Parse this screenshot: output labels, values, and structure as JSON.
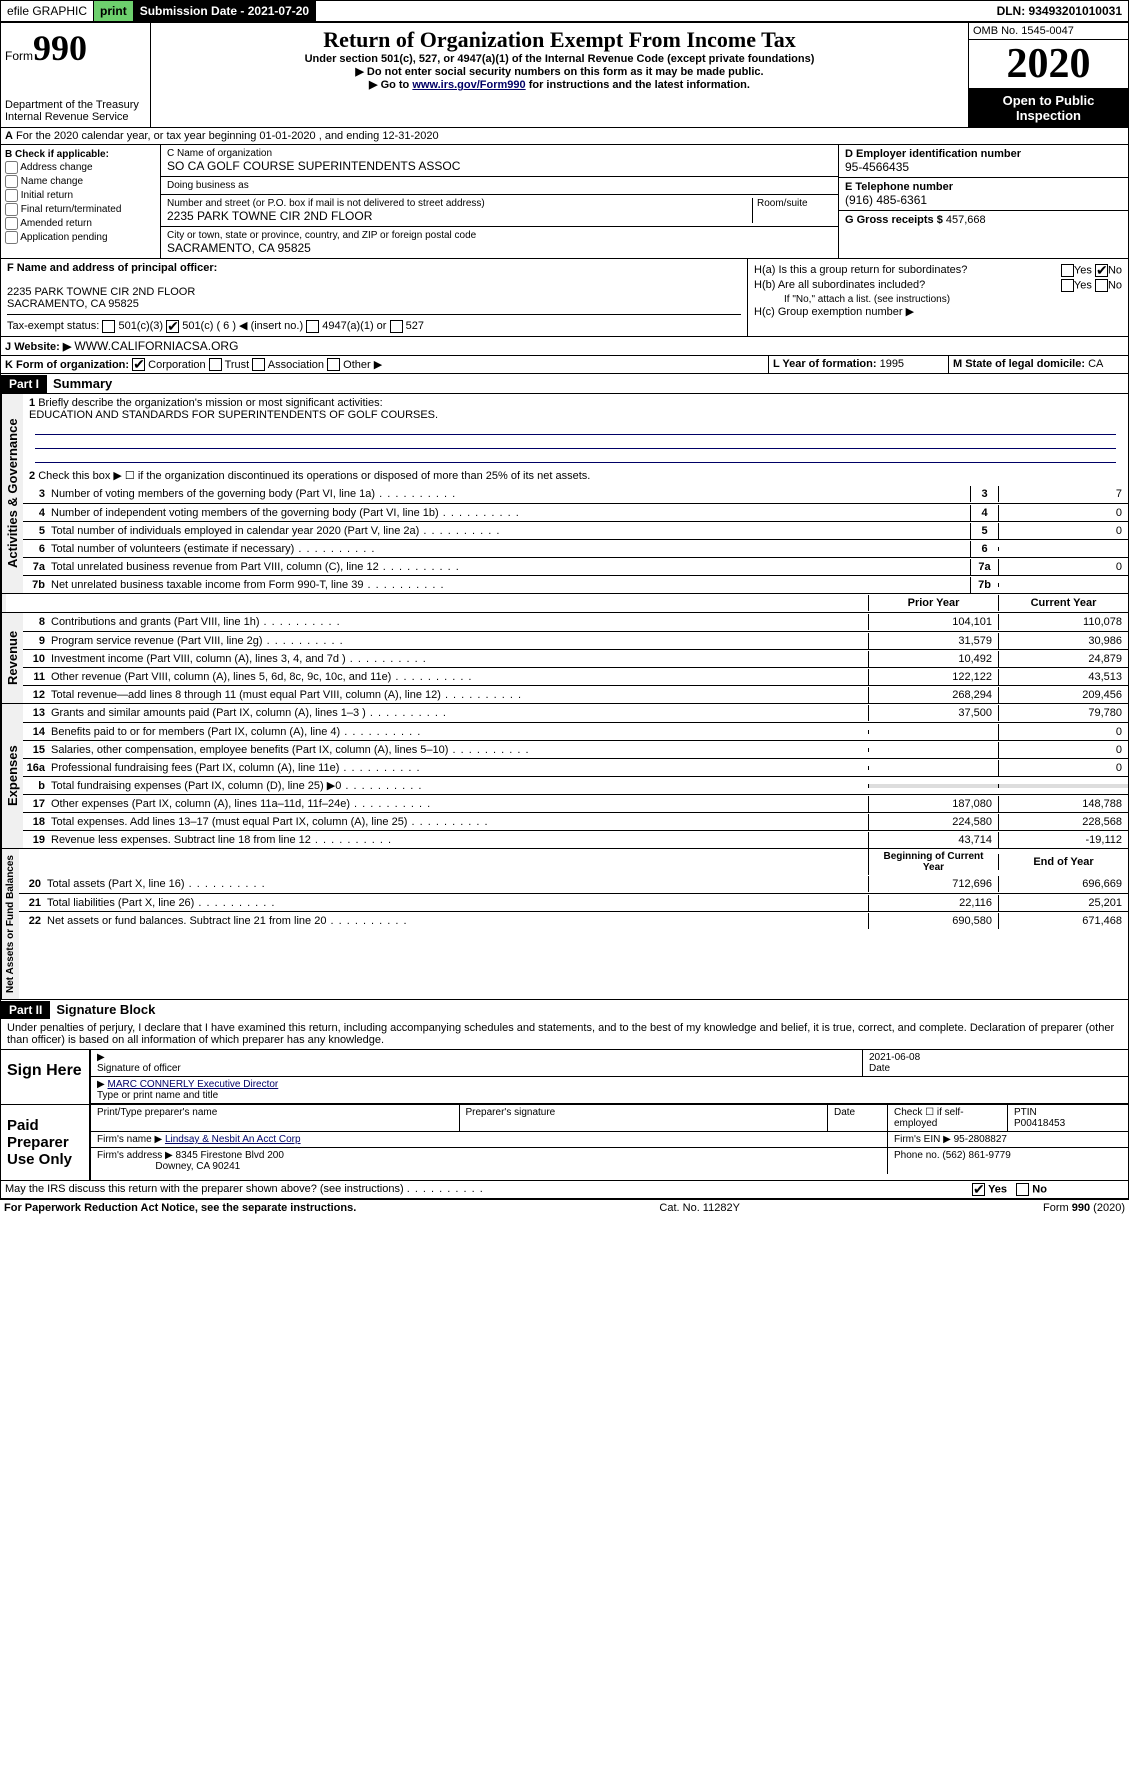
{
  "topbar": {
    "efile": "efile GRAPHIC",
    "print": "print",
    "subdate_label": "Submission Date - 2021-07-20",
    "dln": "DLN: 93493201010031"
  },
  "header": {
    "form_prefix": "Form",
    "form_num": "990",
    "dept": "Department of the Treasury",
    "irs": "Internal Revenue Service",
    "title": "Return of Organization Exempt From Income Tax",
    "sub1": "Under section 501(c), 527, or 4947(a)(1) of the Internal Revenue Code (except private foundations)",
    "sub2": "▶ Do not enter social security numbers on this form as it may be made public.",
    "sub3_pre": "▶ Go to ",
    "sub3_link": "www.irs.gov/Form990",
    "sub3_post": " for instructions and the latest information.",
    "omb": "OMB No. 1545-0047",
    "year": "2020",
    "open": "Open to Public",
    "inspection": "Inspection"
  },
  "section_a": "For the 2020 calendar year, or tax year beginning 01-01-2020    , and ending 12-31-2020",
  "box_b": {
    "label": "B Check if applicable:",
    "items": [
      "Address change",
      "Name change",
      "Initial return",
      "Final return/terminated",
      "Amended return",
      "Application pending"
    ]
  },
  "box_c": {
    "name_label": "C Name of organization",
    "name": "SO CA GOLF COURSE SUPERINTENDENTS ASSOC",
    "dba_label": "Doing business as",
    "addr_label": "Number and street (or P.O. box if mail is not delivered to street address)",
    "room_label": "Room/suite",
    "addr": "2235 PARK TOWNE CIR 2ND FLOOR",
    "city_label": "City or town, state or province, country, and ZIP or foreign postal code",
    "city": "SACRAMENTO, CA  95825"
  },
  "box_d": {
    "label": "D Employer identification number",
    "val": "95-4566435"
  },
  "box_e": {
    "label": "E Telephone number",
    "val": "(916) 485-6361"
  },
  "box_g": {
    "label": "G Gross receipts $",
    "val": "457,668"
  },
  "box_f": {
    "label": "F Name and address of principal officer:",
    "addr1": "2235 PARK TOWNE CIR 2ND FLOOR",
    "addr2": "SACRAMENTO, CA  95825"
  },
  "box_h": {
    "a": "H(a)  Is this a group return for subordinates?",
    "b": "H(b)  Are all subordinates included?",
    "b_note": "If \"No,\" attach a list. (see instructions)",
    "c": "H(c)  Group exemption number ▶"
  },
  "tax_status": {
    "label": "Tax-exempt status:",
    "opts": [
      "501(c)(3)",
      "501(c) ( 6 ) ◀ (insert no.)",
      "4947(a)(1) or",
      "527"
    ]
  },
  "box_j": {
    "label": "J",
    "website_label": "Website: ▶",
    "website": "WWW.CALIFORNIACSA.ORG"
  },
  "box_k": {
    "label": "K Form of organization:",
    "opts": [
      "Corporation",
      "Trust",
      "Association",
      "Other ▶"
    ]
  },
  "box_l": {
    "label": "L Year of formation:",
    "val": "1995"
  },
  "box_m": {
    "label": "M State of legal domicile:",
    "val": "CA"
  },
  "part1": {
    "hdr": "Part I",
    "title": "Summary",
    "line1_label": "Briefly describe the organization's mission or most significant activities:",
    "line1_val": "EDUCATION AND STANDARDS FOR SUPERINTENDENTS OF GOLF COURSES.",
    "line2": "Check this box ▶ ☐ if the organization discontinued its operations or disposed of more than 25% of its net assets.",
    "lines_gov": [
      {
        "n": "3",
        "t": "Number of voting members of the governing body (Part VI, line 1a)",
        "v": "7"
      },
      {
        "n": "4",
        "t": "Number of independent voting members of the governing body (Part VI, line 1b)",
        "v": "0"
      },
      {
        "n": "5",
        "t": "Total number of individuals employed in calendar year 2020 (Part V, line 2a)",
        "v": "0"
      },
      {
        "n": "6",
        "t": "Total number of volunteers (estimate if necessary)",
        "v": ""
      },
      {
        "n": "7a",
        "t": "Total unrelated business revenue from Part VIII, column (C), line 12",
        "v": "0"
      },
      {
        "n": "7b",
        "t": "Net unrelated business taxable income from Form 990-T, line 39",
        "v": ""
      }
    ],
    "hdr_prior": "Prior Year",
    "hdr_current": "Current Year",
    "lines_rev": [
      {
        "n": "8",
        "t": "Contributions and grants (Part VIII, line 1h)",
        "p": "104,101",
        "c": "110,078"
      },
      {
        "n": "9",
        "t": "Program service revenue (Part VIII, line 2g)",
        "p": "31,579",
        "c": "30,986"
      },
      {
        "n": "10",
        "t": "Investment income (Part VIII, column (A), lines 3, 4, and 7d )",
        "p": "10,492",
        "c": "24,879"
      },
      {
        "n": "11",
        "t": "Other revenue (Part VIII, column (A), lines 5, 6d, 8c, 9c, 10c, and 11e)",
        "p": "122,122",
        "c": "43,513"
      },
      {
        "n": "12",
        "t": "Total revenue—add lines 8 through 11 (must equal Part VIII, column (A), line 12)",
        "p": "268,294",
        "c": "209,456"
      }
    ],
    "lines_exp": [
      {
        "n": "13",
        "t": "Grants and similar amounts paid (Part IX, column (A), lines 1–3 )",
        "p": "37,500",
        "c": "79,780"
      },
      {
        "n": "14",
        "t": "Benefits paid to or for members (Part IX, column (A), line 4)",
        "p": "",
        "c": "0"
      },
      {
        "n": "15",
        "t": "Salaries, other compensation, employee benefits (Part IX, column (A), lines 5–10)",
        "p": "",
        "c": "0"
      },
      {
        "n": "16a",
        "t": "Professional fundraising fees (Part IX, column (A), line 11e)",
        "p": "",
        "c": "0"
      },
      {
        "n": "b",
        "t": "Total fundraising expenses (Part IX, column (D), line 25) ▶0",
        "p": "",
        "c": "",
        "shade": true
      },
      {
        "n": "17",
        "t": "Other expenses (Part IX, column (A), lines 11a–11d, 11f–24e)",
        "p": "187,080",
        "c": "148,788"
      },
      {
        "n": "18",
        "t": "Total expenses. Add lines 13–17 (must equal Part IX, column (A), line 25)",
        "p": "224,580",
        "c": "228,568"
      },
      {
        "n": "19",
        "t": "Revenue less expenses. Subtract line 18 from line 12",
        "p": "43,714",
        "c": "-19,112"
      }
    ],
    "hdr_begin": "Beginning of Current Year",
    "hdr_end": "End of Year",
    "lines_net": [
      {
        "n": "20",
        "t": "Total assets (Part X, line 16)",
        "p": "712,696",
        "c": "696,669"
      },
      {
        "n": "21",
        "t": "Total liabilities (Part X, line 26)",
        "p": "22,116",
        "c": "25,201"
      },
      {
        "n": "22",
        "t": "Net assets or fund balances. Subtract line 21 from line 20",
        "p": "690,580",
        "c": "671,468"
      }
    ]
  },
  "vtabs": {
    "gov": "Activities & Governance",
    "rev": "Revenue",
    "exp": "Expenses",
    "net": "Net Assets or Fund Balances"
  },
  "part2": {
    "hdr": "Part II",
    "title": "Signature Block",
    "perjury": "Under penalties of perjury, I declare that I have examined this return, including accompanying schedules and statements, and to the best of my knowledge and belief, it is true, correct, and complete. Declaration of preparer (other than officer) is based on all information of which preparer has any knowledge.",
    "sign_here": "Sign Here",
    "sig_officer": "Signature of officer",
    "sig_date": "2021-06-08",
    "date_label": "Date",
    "officer_name": "MARC CONNERLY Executive Director",
    "type_label": "Type or print name and title",
    "paid_prep": "Paid Preparer Use Only",
    "prep_name_label": "Print/Type preparer's name",
    "prep_sig_label": "Preparer's signature",
    "check_self": "Check ☐ if self-employed",
    "ptin_label": "PTIN",
    "ptin": "P00418453",
    "firm_name_label": "Firm's name    ▶",
    "firm_name": "Lindsay & Nesbit An Acct Corp",
    "firm_ein_label": "Firm's EIN ▶",
    "firm_ein": "95-2808827",
    "firm_addr_label": "Firm's address ▶",
    "firm_addr1": "8345 Firestone Blvd 200",
    "firm_addr2": "Downey, CA  90241",
    "phone_label": "Phone no.",
    "phone": "(562) 861-9779",
    "discuss": "May the IRS discuss this return with the preparer shown above? (see instructions)"
  },
  "footer": {
    "paperwork": "For Paperwork Reduction Act Notice, see the separate instructions.",
    "cat": "Cat. No. 11282Y",
    "form": "Form 990 (2020)"
  }
}
